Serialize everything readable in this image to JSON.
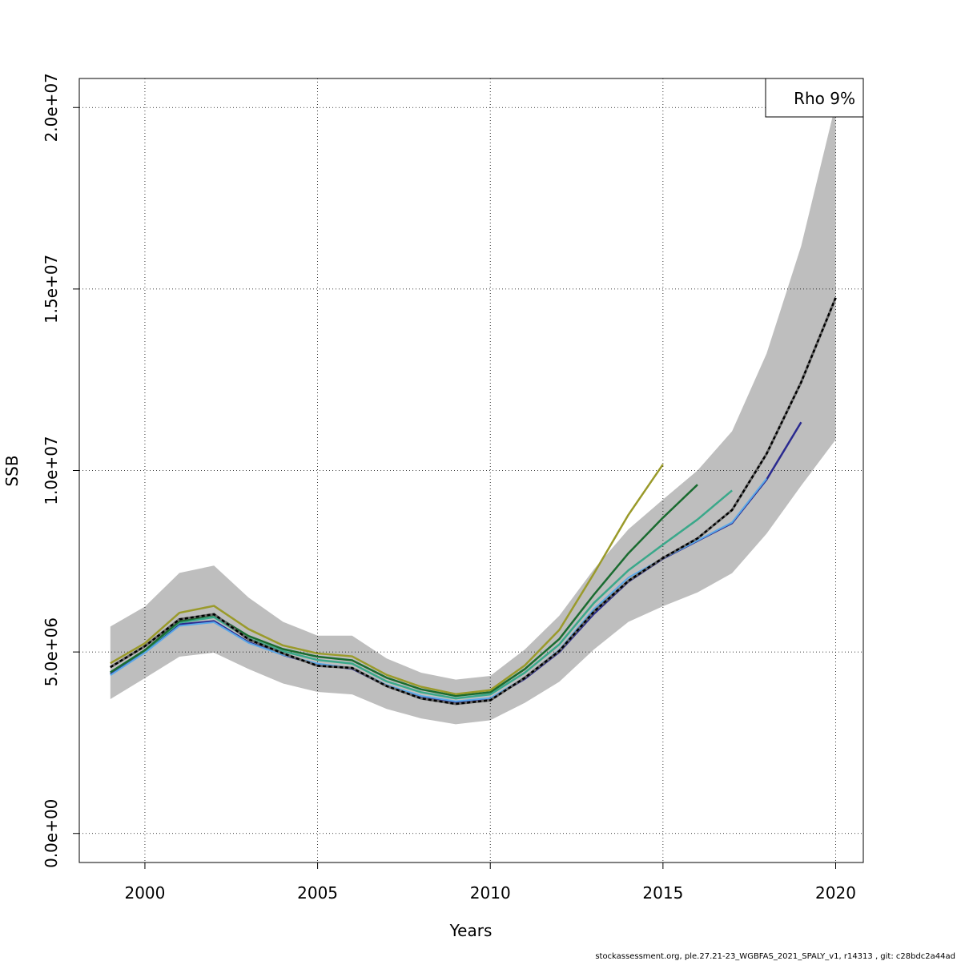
{
  "chart_data": {
    "type": "line",
    "xlabel": "Years",
    "ylabel": "SSB",
    "xlim": [
      1998.1,
      2020.8
    ],
    "ylim": [
      -800000,
      20800000
    ],
    "x_ticks": [
      {
        "value": 2000,
        "label": "2000"
      },
      {
        "value": 2005,
        "label": "2005"
      },
      {
        "value": 2010,
        "label": "2010"
      },
      {
        "value": 2015,
        "label": "2015"
      },
      {
        "value": 2020,
        "label": "2020"
      }
    ],
    "y_ticks": [
      {
        "value": 0,
        "label": "0.0e+00"
      },
      {
        "value": 5000000,
        "label": "5.0e+06"
      },
      {
        "value": 10000000,
        "label": "1.0e+07"
      },
      {
        "value": 15000000,
        "label": "1.5e+07"
      },
      {
        "value": 20000000,
        "label": "2.0e+07"
      }
    ],
    "grid": true,
    "legend": {
      "position": "top-right",
      "text": "Rho 9%"
    },
    "confidence_band": {
      "color": "#bebebe",
      "x": [
        1999,
        2000,
        2001,
        2002,
        2003,
        2004,
        2005,
        2006,
        2007,
        2008,
        2009,
        2010,
        2011,
        2012,
        2013,
        2014,
        2015,
        2016,
        2017,
        2018,
        2019,
        2020
      ],
      "upper": [
        5700000,
        6250000,
        7180000,
        7380000,
        6500000,
        5830000,
        5450000,
        5450000,
        4820000,
        4430000,
        4240000,
        4340000,
        5070000,
        6000000,
        7280000,
        8380000,
        9200000,
        10000000,
        11080000,
        13220000,
        16180000,
        20100000
      ],
      "lower": [
        3700000,
        4280000,
        4870000,
        4980000,
        4530000,
        4130000,
        3900000,
        3830000,
        3430000,
        3170000,
        3010000,
        3120000,
        3600000,
        4180000,
        5070000,
        5830000,
        6260000,
        6640000,
        7170000,
        8260000,
        9580000,
        10850000
      ]
    },
    "series": [
      {
        "color": "#000000",
        "style": "dashed",
        "width": 2.5,
        "x": [
          1999,
          2000,
          2001,
          2002,
          2003,
          2004,
          2005,
          2006,
          2007,
          2008,
          2009,
          2010,
          2011,
          2012,
          2013,
          2014,
          2015,
          2016,
          2017,
          2018,
          2019,
          2020
        ],
        "values": [
          4580000,
          5160000,
          5900000,
          6040000,
          5350000,
          4960000,
          4620000,
          4560000,
          4060000,
          3720000,
          3570000,
          3670000,
          4290000,
          5030000,
          6110000,
          6960000,
          7590000,
          8130000,
          8910000,
          10460000,
          12430000,
          14760000
        ]
      },
      {
        "color": "#2a2a8f",
        "style": "solid",
        "width": 2.5,
        "x": [
          1999,
          2000,
          2001,
          2002,
          2003,
          2004,
          2005,
          2006,
          2007,
          2008,
          2009,
          2010,
          2011,
          2012,
          2013,
          2014,
          2015,
          2016,
          2017,
          2018,
          2019
        ],
        "values": [
          4400000,
          5000000,
          5760000,
          5850000,
          5270000,
          4920000,
          4650000,
          4540000,
          4060000,
          3760000,
          3600000,
          3700000,
          4260000,
          5000000,
          6050000,
          6940000,
          7570000,
          8060000,
          8550000,
          9750000,
          11330000
        ]
      },
      {
        "color": "#5aa8e8",
        "style": "solid",
        "width": 2,
        "x": [
          1999,
          2000,
          2001,
          2002,
          2003,
          2004,
          2005,
          2006,
          2007,
          2008,
          2009,
          2010,
          2011,
          2012,
          2013,
          2014,
          2015,
          2016,
          2017,
          2018
        ],
        "values": [
          4360000,
          4980000,
          5720000,
          5820000,
          5250000,
          4920000,
          4680000,
          4560000,
          4090000,
          3790000,
          3640000,
          3730000,
          4290000,
          5060000,
          6180000,
          7050000,
          7580000,
          8070000,
          8570000,
          9780000
        ]
      },
      {
        "color": "#3aa88a",
        "style": "solid",
        "width": 2.5,
        "x": [
          1999,
          2000,
          2001,
          2002,
          2003,
          2004,
          2005,
          2006,
          2007,
          2008,
          2009,
          2010,
          2011,
          2012,
          2013,
          2014,
          2015,
          2016,
          2017
        ],
        "values": [
          4440000,
          5040000,
          5810000,
          5960000,
          5370000,
          5020000,
          4780000,
          4680000,
          4190000,
          3890000,
          3720000,
          3830000,
          4430000,
          5210000,
          6350000,
          7250000,
          7960000,
          8650000,
          9450000
        ]
      },
      {
        "color": "#1a6b30",
        "style": "solid",
        "width": 2.5,
        "x": [
          1999,
          2000,
          2001,
          2002,
          2003,
          2004,
          2005,
          2006,
          2007,
          2008,
          2009,
          2010,
          2011,
          2012,
          2013,
          2014,
          2015,
          2016
        ],
        "values": [
          4440000,
          5050000,
          5850000,
          6020000,
          5440000,
          5080000,
          4870000,
          4770000,
          4290000,
          3970000,
          3790000,
          3890000,
          4530000,
          5360000,
          6580000,
          7720000,
          8700000,
          9610000
        ]
      },
      {
        "color": "#9a9a2a",
        "style": "solid",
        "width": 2.5,
        "x": [
          1999,
          2000,
          2001,
          2002,
          2003,
          2004,
          2005,
          2006,
          2007,
          2008,
          2009,
          2010,
          2011,
          2012,
          2013,
          2014,
          2015
        ],
        "values": [
          4690000,
          5240000,
          6080000,
          6270000,
          5630000,
          5180000,
          4960000,
          4880000,
          4370000,
          4040000,
          3840000,
          3950000,
          4630000,
          5610000,
          7160000,
          8780000,
          10170000
        ]
      }
    ]
  },
  "footer": "stockassessment.org, ple.27.21-23_WGBFAS_2021_SPALY_v1, r14313 , git: c28bdc2a44ad"
}
